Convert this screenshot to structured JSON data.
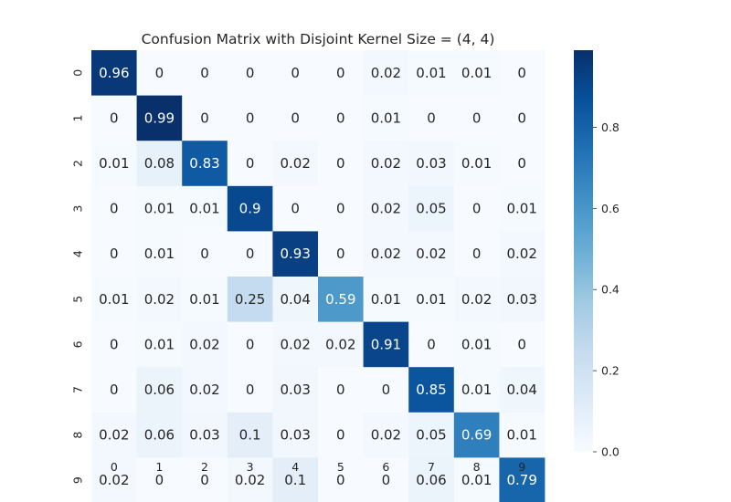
{
  "chart_data": {
    "type": "heatmap",
    "title": "Confusion Matrix with Disjoint Kernel Size = (4, 4)",
    "xlabel": "",
    "ylabel": "",
    "x_tick_labels": [
      "0",
      "1",
      "2",
      "3",
      "4",
      "5",
      "6",
      "7",
      "8",
      "9"
    ],
    "y_tick_labels": [
      "0",
      "1",
      "2",
      "3",
      "4",
      "5",
      "6",
      "7",
      "8",
      "9"
    ],
    "matrix": [
      [
        0.96,
        0,
        0,
        0,
        0,
        0,
        0.02,
        0.01,
        0.01,
        0
      ],
      [
        0,
        0.99,
        0,
        0,
        0,
        0,
        0.01,
        0,
        0,
        0
      ],
      [
        0.01,
        0.08,
        0.83,
        0,
        0.02,
        0,
        0.02,
        0.03,
        0.01,
        0
      ],
      [
        0,
        0.01,
        0.01,
        0.9,
        0,
        0,
        0.02,
        0.05,
        0,
        0.01
      ],
      [
        0,
        0.01,
        0,
        0,
        0.93,
        0,
        0.02,
        0.02,
        0,
        0.02
      ],
      [
        0.01,
        0.02,
        0.01,
        0.25,
        0.04,
        0.59,
        0.01,
        0.01,
        0.02,
        0.03
      ],
      [
        0,
        0.01,
        0.02,
        0,
        0.02,
        0.02,
        0.91,
        0,
        0.01,
        0
      ],
      [
        0,
        0.06,
        0.02,
        0,
        0.03,
        0,
        0,
        0.85,
        0.01,
        0.04
      ],
      [
        0.02,
        0.06,
        0.03,
        0.1,
        0.03,
        0,
        0.02,
        0.05,
        0.69,
        0.01
      ],
      [
        0.02,
        0,
        0,
        0.02,
        0.1,
        0,
        0,
        0.06,
        0.01,
        0.79
      ]
    ],
    "colormap": "Blues",
    "colorbar": {
      "range": [
        0,
        0.99
      ],
      "ticks": [
        0.0,
        0.2,
        0.4,
        0.6,
        0.8
      ],
      "tick_labels": [
        "0.0",
        "0.2",
        "0.4",
        "0.6",
        "0.8"
      ]
    },
    "annotated": true,
    "grid": false
  },
  "colors": {
    "text_dark": "#262626",
    "text_light": "#ffffff"
  }
}
